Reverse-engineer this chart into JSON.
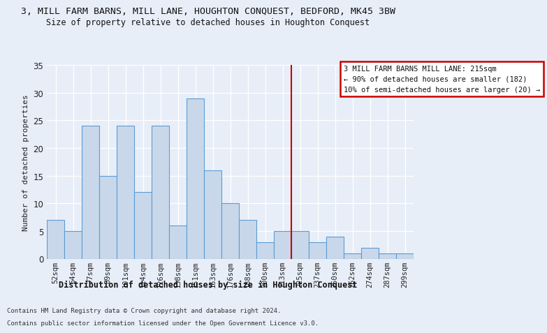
{
  "title": "3, MILL FARM BARNS, MILL LANE, HOUGHTON CONQUEST, BEDFORD, MK45 3BW",
  "subtitle": "Size of property relative to detached houses in Houghton Conquest",
  "xlabel": "Distribution of detached houses by size in Houghton Conquest",
  "ylabel": "Number of detached properties",
  "categories": [
    "52sqm",
    "64sqm",
    "77sqm",
    "89sqm",
    "101sqm",
    "114sqm",
    "126sqm",
    "138sqm",
    "151sqm",
    "163sqm",
    "176sqm",
    "188sqm",
    "200sqm",
    "213sqm",
    "225sqm",
    "237sqm",
    "250sqm",
    "262sqm",
    "274sqm",
    "287sqm",
    "299sqm"
  ],
  "values": [
    7,
    5,
    24,
    15,
    24,
    12,
    24,
    6,
    29,
    16,
    10,
    7,
    3,
    5,
    5,
    3,
    4,
    1,
    2,
    1,
    1
  ],
  "bar_color": "#c8d8ea",
  "bar_edge_color": "#5b9bd5",
  "vline_x": 13.5,
  "vline_color": "#cc0000",
  "ylim": [
    0,
    35
  ],
  "yticks": [
    0,
    5,
    10,
    15,
    20,
    25,
    30,
    35
  ],
  "annotation_text": "3 MILL FARM BARNS MILL LANE: 215sqm\n← 90% of detached houses are smaller (182)\n10% of semi-detached houses are larger (20) →",
  "annotation_box_color": "#ffffff",
  "annotation_box_edge_color": "#cc0000",
  "footer_line1": "Contains HM Land Registry data © Crown copyright and database right 2024.",
  "footer_line2": "Contains public sector information licensed under the Open Government Licence v3.0.",
  "bg_color": "#e8eef8",
  "plot_bg_color": "#e8eef8"
}
